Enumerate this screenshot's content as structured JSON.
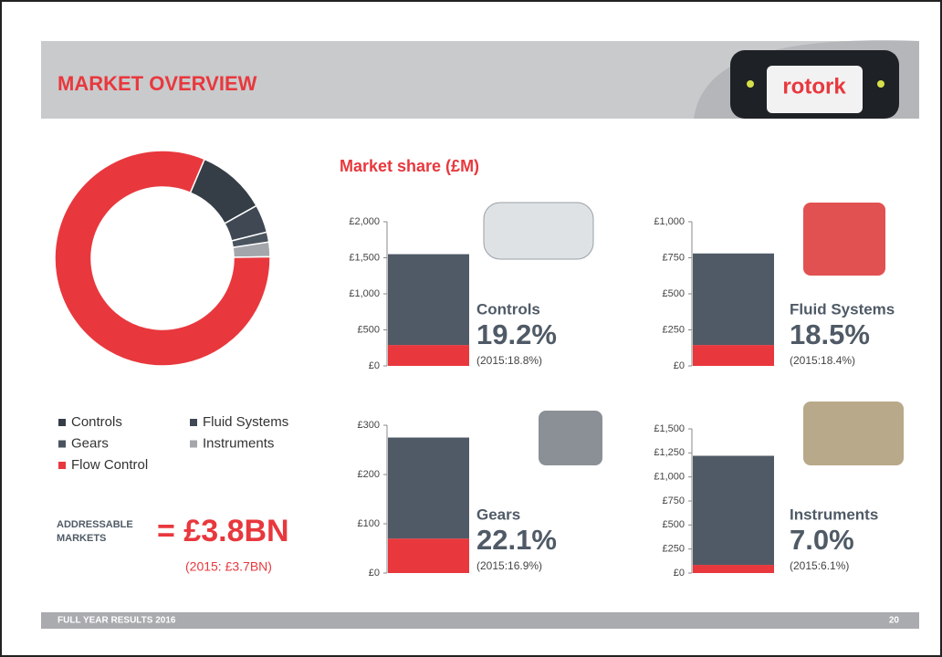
{
  "header": {
    "title": "MARKET OVERVIEW",
    "logo": "rotork"
  },
  "section_title": "Market share (£M)",
  "chart_data": [
    {
      "type": "donut",
      "categories": [
        "Controls",
        "Fluid Systems",
        "Gears",
        "Instruments",
        "Flow Control"
      ],
      "values": [
        10.5,
        4.2,
        1.5,
        2.2,
        81.6
      ],
      "colors": [
        "#353d47",
        "#3f4853",
        "#4a545f",
        "#a3a6aa",
        "#e8383d"
      ]
    },
    {
      "type": "bar",
      "title": "Controls",
      "annotation": "19.2%",
      "note": "(2015:18.8%)",
      "series": [
        {
          "color": "#e8383d",
          "values": [
            290
          ]
        },
        {
          "color": "#4f5a66",
          "values": [
            1260
          ]
        }
      ],
      "ylim": [
        0,
        2000
      ],
      "yticks": [
        {
          "value": 0,
          "label": "£0"
        },
        {
          "value": 500,
          "label": "£500"
        },
        {
          "value": 1000,
          "label": "£1,000"
        },
        {
          "value": 1500,
          "label": "£1,500"
        },
        {
          "value": 2000,
          "label": "£2,000"
        }
      ]
    },
    {
      "type": "bar",
      "title": "Fluid Systems",
      "annotation": "18.5%",
      "note": "(2015:18.4%)",
      "series": [
        {
          "color": "#e8383d",
          "values": [
            145
          ]
        },
        {
          "color": "#4f5a66",
          "values": [
            635
          ]
        }
      ],
      "ylim": [
        0,
        1000
      ],
      "yticks": [
        {
          "value": 0,
          "label": "£0"
        },
        {
          "value": 250,
          "label": "£250"
        },
        {
          "value": 500,
          "label": "£500"
        },
        {
          "value": 750,
          "label": "£750"
        },
        {
          "value": 1000,
          "label": "£1,000"
        }
      ]
    },
    {
      "type": "bar",
      "title": "Gears",
      "annotation": "22.1%",
      "note": "(2015:16.9%)",
      "series": [
        {
          "color": "#e8383d",
          "values": [
            70
          ]
        },
        {
          "color": "#4f5a66",
          "values": [
            205
          ]
        }
      ],
      "ylim": [
        0,
        300
      ],
      "yticks": [
        {
          "value": 0,
          "label": "£0"
        },
        {
          "value": 100,
          "label": "£100"
        },
        {
          "value": 200,
          "label": "£200"
        },
        {
          "value": 300,
          "label": "£300"
        }
      ]
    },
    {
      "type": "bar",
      "title": "Instruments",
      "annotation": "7.0%",
      "note": "(2015:6.1%)",
      "series": [
        {
          "color": "#e8383d",
          "values": [
            85
          ]
        },
        {
          "color": "#4f5a66",
          "values": [
            1135
          ]
        }
      ],
      "ylim": [
        0,
        1500
      ],
      "yticks": [
        {
          "value": 0,
          "label": "£0"
        },
        {
          "value": 250,
          "label": "£250"
        },
        {
          "value": 500,
          "label": "£500"
        },
        {
          "value": 750,
          "label": "£750"
        },
        {
          "value": 1000,
          "label": "£1,000"
        },
        {
          "value": 1250,
          "label": "£1,250"
        },
        {
          "value": 1500,
          "label": "£1,500"
        }
      ]
    }
  ],
  "summary": {
    "label": [
      "ADDRESSABLE",
      "MARKETS"
    ],
    "total": "= £3.8BN",
    "previous": "(2015: £3.7BN)"
  },
  "footer": {
    "text": "FULL YEAR RESULTS 2016",
    "page": "20"
  }
}
